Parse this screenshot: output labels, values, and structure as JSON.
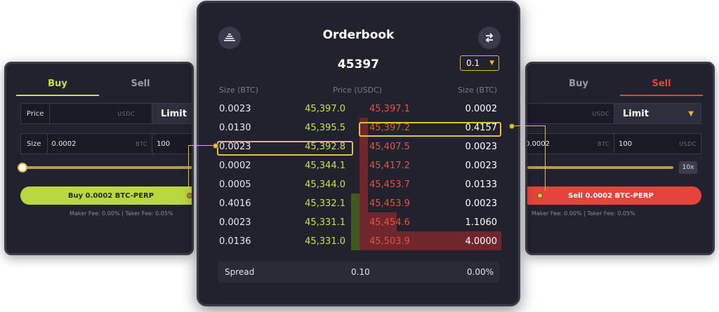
{
  "buy_panel": {
    "tab_buy": "Buy",
    "tab_sell": "Sell",
    "price_label": "Price",
    "price_unit": "USDC",
    "order_type": "Limit",
    "size_label": "Size",
    "size_value": "0.0002",
    "size_unit": "BTC",
    "usdc_value": "100",
    "button": "Buy 0.0002 BTC-PERP",
    "fees": "Maker Fee: 0.00%  |  Taker Fee: 0.05%"
  },
  "sell_panel": {
    "tab_buy": "Buy",
    "tab_sell": "Sell",
    "price_unit": "USDC",
    "order_type": "Limit",
    "size_value": "0.0002",
    "size_unit": "BTC",
    "usdc_value": "100",
    "usdc_unit": "USDC",
    "leverage": "10x",
    "button": "Sell 0.0002 BTC-PERP",
    "fees": "Maker Fee: 0.00%  |  Taker Fee: 0.05%"
  },
  "orderbook": {
    "title": "Orderbook",
    "mid_price": "45397",
    "tick_size": "0.1",
    "headers": {
      "bid_size": "Size (BTC)",
      "price": "Price (USDC)",
      "ask_size": "Size (BTC)"
    },
    "rows": [
      {
        "bid_size": "0.0023",
        "bid_price": "45,397.0",
        "ask_price": "45,397.1",
        "ask_size": "0.0002"
      },
      {
        "bid_size": "0.0130",
        "bid_price": "45,395.5",
        "ask_price": "45,397.2",
        "ask_size": "0.4157"
      },
      {
        "bid_size": "0.0023",
        "bid_price": "45,392.8",
        "ask_price": "45,407.5",
        "ask_size": "0.0023"
      },
      {
        "bid_size": "0.0002",
        "bid_price": "45,344.1",
        "ask_price": "45,417.2",
        "ask_size": "0.0023"
      },
      {
        "bid_size": "0.0005",
        "bid_price": "45,344.0",
        "ask_price": "45,453.7",
        "ask_size": "0.0133"
      },
      {
        "bid_size": "0.4016",
        "bid_price": "45,332.1",
        "ask_price": "45,453.9",
        "ask_size": "0.0023"
      },
      {
        "bid_size": "0.0023",
        "bid_price": "45,331.1",
        "ask_price": "45,454.6",
        "ask_size": "1.1060"
      },
      {
        "bid_size": "0.0136",
        "bid_price": "45,331.0",
        "ask_price": "45,503.9",
        "ask_size": "4.0000"
      }
    ],
    "spread_label": "Spread",
    "spread_value": "0.10",
    "spread_pct": "0.00%"
  },
  "colors": {
    "bid": "#c6e24a",
    "ask": "#e5443a",
    "highlight": "#e0c04a",
    "panel_bg": "#22222e"
  },
  "icons": {
    "left": "stacked-layers-icon",
    "right": "swap-arrows-icon",
    "tick_chevron": "chevron-down-icon"
  }
}
